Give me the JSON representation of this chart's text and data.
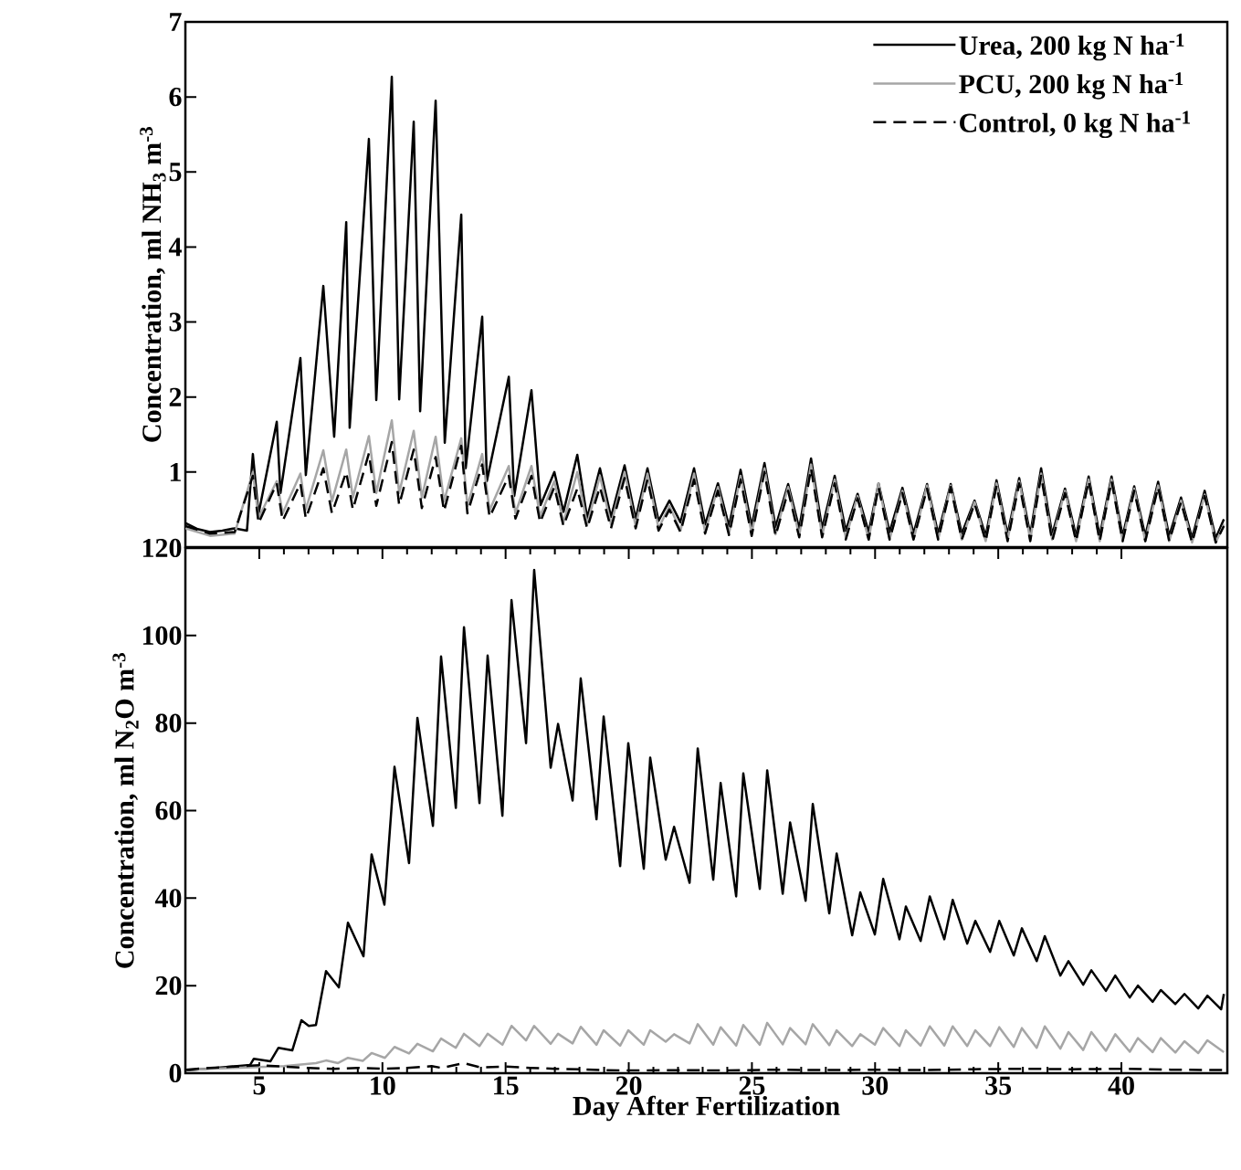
{
  "chart_data": [
    {
      "type": "line",
      "ylabel": "Concentration, ml NH$_{3}$ m$^{-3}$",
      "xlim": [
        2,
        44.3
      ],
      "ylim": [
        0,
        7
      ],
      "yticks": [
        1,
        2,
        3,
        4,
        5,
        6,
        7
      ],
      "tick_labels": "y",
      "legend": "top right",
      "series": [
        {
          "name": "Urea, 200 kg N ha$^{-1}$",
          "color": "#000000",
          "line_style": "solid",
          "x": [
            2.0,
            2.5,
            3.0,
            3.5,
            4.0,
            4.5,
            4.74,
            4.97,
            5.71,
            5.86,
            6.67,
            6.89,
            7.6,
            8.04,
            8.53,
            8.67,
            9.45,
            9.75,
            10.38,
            10.68,
            11.27,
            11.53,
            12.16,
            12.53,
            13.2,
            13.38,
            14.05,
            14.24,
            15.13,
            15.35,
            16.05,
            16.42,
            16.98,
            17.35,
            17.91,
            18.31,
            18.83,
            19.28,
            19.83,
            20.28,
            20.76,
            21.21,
            21.65,
            22.1,
            22.65,
            23.1,
            23.62,
            24.07,
            24.54,
            24.99,
            25.51,
            25.96,
            26.47,
            26.92,
            27.4,
            27.85,
            28.36,
            28.81,
            29.29,
            29.74,
            30.14,
            30.59,
            31.11,
            31.56,
            32.11,
            32.56,
            33.07,
            33.52,
            34.04,
            34.49,
            34.93,
            35.38,
            35.85,
            36.3,
            36.74,
            37.19,
            37.71,
            38.16,
            38.67,
            39.12,
            39.6,
            40.05,
            40.52,
            40.97,
            41.49,
            41.94,
            42.42,
            42.87,
            43.38,
            43.83,
            44.16
          ],
          "values": [
            0.32,
            0.24,
            0.2,
            0.22,
            0.25,
            0.22,
            1.24,
            0.44,
            1.67,
            0.72,
            2.52,
            0.96,
            3.48,
            1.47,
            4.33,
            1.59,
            5.44,
            1.96,
            6.27,
            1.97,
            5.67,
            1.81,
            5.95,
            1.39,
            4.43,
            1.05,
            3.07,
            0.88,
            2.27,
            0.68,
            2.09,
            0.56,
            1.0,
            0.47,
            1.23,
            0.39,
            1.05,
            0.4,
            1.09,
            0.38,
            1.05,
            0.35,
            0.62,
            0.33,
            1.05,
            0.3,
            0.85,
            0.28,
            1.03,
            0.28,
            1.12,
            0.27,
            0.84,
            0.25,
            1.18,
            0.25,
            0.95,
            0.22,
            0.71,
            0.2,
            0.85,
            0.2,
            0.79,
            0.18,
            0.84,
            0.18,
            0.84,
            0.18,
            0.62,
            0.15,
            0.89,
            0.17,
            0.92,
            0.17,
            1.05,
            0.17,
            0.78,
            0.15,
            0.94,
            0.15,
            0.94,
            0.15,
            0.81,
            0.15,
            0.87,
            0.15,
            0.66,
            0.12,
            0.75,
            0.12,
            0.37
          ]
        },
        {
          "name": "PCU, 200 kg N ha$^{-1}$",
          "color": "#a6a6a6",
          "line_style": "solid",
          "x": [
            2.0,
            3.0,
            4.0,
            4.74,
            4.97,
            5.71,
            5.95,
            6.67,
            6.89,
            7.6,
            7.95,
            8.53,
            8.8,
            9.45,
            9.75,
            10.38,
            10.68,
            11.27,
            11.6,
            12.16,
            12.5,
            13.2,
            13.45,
            14.05,
            14.35,
            15.13,
            15.4,
            16.05,
            16.4,
            16.98,
            17.35,
            17.91,
            18.31,
            18.83,
            19.28,
            19.83,
            20.28,
            20.76,
            21.21,
            21.65,
            22.1,
            22.65,
            23.1,
            23.62,
            24.07,
            24.54,
            24.99,
            25.51,
            25.96,
            26.47,
            26.92,
            27.4,
            27.85,
            28.36,
            28.81,
            29.29,
            29.74,
            30.14,
            30.59,
            31.11,
            31.56,
            32.11,
            32.56,
            33.07,
            33.52,
            34.04,
            34.49,
            34.93,
            35.38,
            35.85,
            36.3,
            36.74,
            37.19,
            37.71,
            38.16,
            38.67,
            39.12,
            39.6,
            40.05,
            40.52,
            40.97,
            41.49,
            41.94,
            42.42,
            42.87,
            43.38,
            43.83,
            44.16
          ],
          "values": [
            0.25,
            0.15,
            0.18,
            1.0,
            0.39,
            0.88,
            0.45,
            0.98,
            0.5,
            1.29,
            0.61,
            1.3,
            0.66,
            1.48,
            0.72,
            1.69,
            0.72,
            1.55,
            0.66,
            1.47,
            0.61,
            1.45,
            0.55,
            1.24,
            0.49,
            1.08,
            0.45,
            1.08,
            0.41,
            0.88,
            0.33,
            1.0,
            0.3,
            0.95,
            0.3,
            1.0,
            0.28,
            0.98,
            0.25,
            0.55,
            0.22,
            0.98,
            0.2,
            0.8,
            0.18,
            0.95,
            0.18,
            1.05,
            0.17,
            0.8,
            0.15,
            1.1,
            0.15,
            0.9,
            0.12,
            0.68,
            0.1,
            0.85,
            0.1,
            0.75,
            0.1,
            0.82,
            0.1,
            0.82,
            0.1,
            0.6,
            0.08,
            0.85,
            0.1,
            0.88,
            0.1,
            0.98,
            0.1,
            0.75,
            0.08,
            0.9,
            0.08,
            0.9,
            0.08,
            0.78,
            0.08,
            0.82,
            0.08,
            0.62,
            0.06,
            0.7,
            0.06,
            0.3
          ]
        },
        {
          "name": "Control, 0 kg N ha$^{-1}$",
          "color": "#000000",
          "line_style": "dashed",
          "x": [
            2.0,
            3.0,
            4.0,
            4.74,
            4.97,
            5.71,
            5.95,
            6.67,
            6.89,
            7.6,
            7.95,
            8.53,
            8.8,
            9.45,
            9.75,
            10.38,
            10.68,
            11.27,
            11.6,
            12.16,
            12.5,
            13.2,
            13.45,
            14.05,
            14.35,
            15.13,
            15.4,
            16.05,
            16.4,
            16.98,
            17.35,
            17.91,
            18.31,
            18.83,
            19.28,
            19.83,
            20.28,
            20.76,
            21.21,
            21.65,
            22.1,
            22.65,
            23.1,
            23.62,
            24.07,
            24.54,
            24.99,
            25.51,
            25.96,
            26.47,
            26.92,
            27.4,
            27.85,
            28.36,
            28.81,
            29.29,
            29.74,
            30.14,
            30.59,
            31.11,
            31.56,
            32.11,
            32.56,
            33.07,
            33.52,
            34.04,
            34.49,
            34.93,
            35.38,
            35.85,
            36.3,
            36.74,
            37.19,
            37.71,
            38.16,
            38.67,
            39.12,
            39.6,
            40.05,
            40.52,
            40.97,
            41.49,
            41.94,
            42.42,
            42.87,
            43.38,
            43.83,
            44.16
          ],
          "values": [
            0.28,
            0.18,
            0.2,
            0.95,
            0.32,
            0.85,
            0.35,
            0.85,
            0.38,
            1.05,
            0.45,
            1.0,
            0.5,
            1.25,
            0.55,
            1.4,
            0.56,
            1.3,
            0.52,
            1.2,
            0.48,
            1.35,
            0.45,
            1.1,
            0.4,
            0.95,
            0.38,
            0.95,
            0.33,
            0.8,
            0.28,
            0.78,
            0.25,
            0.8,
            0.25,
            0.92,
            0.25,
            0.9,
            0.22,
            0.5,
            0.2,
            0.9,
            0.18,
            0.75,
            0.16,
            0.9,
            0.15,
            1.0,
            0.15,
            0.75,
            0.13,
            1.05,
            0.13,
            0.85,
            0.1,
            0.65,
            0.1,
            0.8,
            0.1,
            0.72,
            0.1,
            0.78,
            0.1,
            0.8,
            0.1,
            0.58,
            0.08,
            0.82,
            0.08,
            0.85,
            0.08,
            0.95,
            0.08,
            0.72,
            0.08,
            0.88,
            0.08,
            0.88,
            0.08,
            0.75,
            0.08,
            0.8,
            0.08,
            0.6,
            0.06,
            0.68,
            0.06,
            0.28
          ]
        }
      ]
    },
    {
      "type": "line",
      "xlabel": "Day After Fertilization",
      "ylabel": "Concentration, ml N$_{2}$O m$^{-3}$",
      "xlim": [
        2,
        44.3
      ],
      "ylim": [
        0,
        120
      ],
      "xticks": [
        5,
        10,
        15,
        20,
        25,
        30,
        35,
        40
      ],
      "yticks": [
        0,
        20,
        40,
        60,
        80,
        100,
        120
      ],
      "series": [
        {
          "color": "#000000",
          "line_style": "solid",
          "x": [
            2.04,
            4.63,
            4.78,
            5.45,
            5.78,
            6.34,
            6.71,
            7.01,
            7.3,
            7.71,
            8.23,
            8.6,
            9.23,
            9.56,
            10.08,
            10.49,
            11.08,
            11.42,
            12.05,
            12.38,
            12.98,
            13.31,
            13.94,
            14.27,
            14.87,
            15.24,
            15.83,
            16.16,
            16.83,
            17.13,
            17.72,
            18.05,
            18.69,
            18.98,
            19.65,
            19.98,
            20.61,
            20.87,
            21.5,
            21.84,
            22.47,
            22.8,
            23.43,
            23.73,
            24.36,
            24.65,
            25.32,
            25.62,
            26.25,
            26.55,
            27.18,
            27.47,
            28.14,
            28.44,
            29.07,
            29.4,
            29.99,
            30.33,
            30.99,
            31.25,
            31.85,
            32.22,
            32.81,
            33.15,
            33.74,
            34.07,
            34.67,
            35.04,
            35.63,
            35.96,
            36.56,
            36.89,
            37.52,
            37.85,
            38.45,
            38.78,
            39.37,
            39.75,
            40.34,
            40.67,
            41.27,
            41.6,
            42.19,
            42.56,
            43.12,
            43.49,
            44.05,
            44.16
          ],
          "values": [
            0.6,
            1.9,
            3.3,
            2.7,
            5.8,
            5.2,
            12.1,
            10.8,
            11,
            23.3,
            19.6,
            34.4,
            26.7,
            50,
            38.5,
            70,
            48,
            81.2,
            56.5,
            95.2,
            60.6,
            101.9,
            61.7,
            95.4,
            58.8,
            108.1,
            75.4,
            115,
            69.8,
            79.8,
            62.3,
            90.2,
            58,
            81.5,
            47.3,
            75.4,
            46.7,
            72.1,
            48.8,
            56.3,
            43.5,
            74.2,
            44.2,
            66.3,
            40.4,
            68.5,
            42.1,
            69.2,
            41,
            57.3,
            39.4,
            61.5,
            36.5,
            50.2,
            31.5,
            41.3,
            31.7,
            44.4,
            30.6,
            38.1,
            30.2,
            40.4,
            30.6,
            39.6,
            29.6,
            34.8,
            27.7,
            34.8,
            26.9,
            33.1,
            25.6,
            31.3,
            22.3,
            25.6,
            20.2,
            23.5,
            18.8,
            22.3,
            17.3,
            20,
            16.3,
            19,
            15.8,
            18.1,
            14.8,
            17.7,
            14.6,
            18.1
          ]
        },
        {
          "color": "#a6a6a6",
          "line_style": "solid",
          "x": [
            2.04,
            4.0,
            6.0,
            7.3,
            7.71,
            8.2,
            8.6,
            9.2,
            9.56,
            10.1,
            10.49,
            11.08,
            11.42,
            12.05,
            12.38,
            12.98,
            13.31,
            13.94,
            14.27,
            14.87,
            15.24,
            15.83,
            16.16,
            16.83,
            17.13,
            17.72,
            18.05,
            18.69,
            18.98,
            19.65,
            19.98,
            20.61,
            20.87,
            21.5,
            21.84,
            22.47,
            22.8,
            23.43,
            23.73,
            24.36,
            24.65,
            25.32,
            25.62,
            26.25,
            26.55,
            27.18,
            27.47,
            28.14,
            28.44,
            29.07,
            29.4,
            29.99,
            30.33,
            30.99,
            31.25,
            31.85,
            32.22,
            32.81,
            33.15,
            33.74,
            34.07,
            34.67,
            35.04,
            35.63,
            35.96,
            36.56,
            36.89,
            37.52,
            37.85,
            38.45,
            38.78,
            39.37,
            39.75,
            40.34,
            40.67,
            41.27,
            41.6,
            42.19,
            42.56,
            43.12,
            43.49,
            44.16
          ],
          "values": [
            0.8,
            1.2,
            1.6,
            2.3,
            2.9,
            2.3,
            3.5,
            2.8,
            4.6,
            3.5,
            6,
            4.5,
            6.7,
            5,
            7.9,
            5.8,
            9,
            6.2,
            9,
            6.5,
            10.8,
            7.5,
            10.8,
            6.7,
            9,
            6.8,
            10.6,
            6.5,
            9.8,
            6.3,
            9.8,
            6.5,
            9.8,
            7.2,
            8.9,
            6.8,
            11.2,
            6.5,
            10.5,
            6.3,
            11,
            6.5,
            11.5,
            6.6,
            10.3,
            6.6,
            11.2,
            6.4,
            9.8,
            6.2,
            8.9,
            6.5,
            10.3,
            6.2,
            9.8,
            6.3,
            10.7,
            6.3,
            10.7,
            6.2,
            9.8,
            6.2,
            10.5,
            6,
            10.3,
            5.8,
            10.7,
            5.6,
            9.4,
            5.3,
            9.4,
            5.1,
            8.9,
            4.9,
            8,
            4.8,
            8,
            4.7,
            7.3,
            4.6,
            7.5,
            4.8
          ]
        },
        {
          "color": "#000000",
          "line_style": "dashed",
          "x": [
            2.04,
            3,
            4,
            5,
            6,
            7,
            8,
            9,
            10,
            11,
            12,
            12.4,
            13.3,
            14,
            15,
            16,
            17,
            18,
            19,
            20,
            22,
            24,
            26,
            28,
            30,
            32,
            34,
            36,
            38,
            40,
            42,
            44.16
          ],
          "values": [
            0.8,
            1.2,
            1.5,
            1.8,
            1.5,
            1.2,
            1.0,
            1.2,
            1.0,
            1.2,
            1.6,
            1.2,
            2.3,
            1.3,
            1.5,
            1.2,
            1.0,
            0.9,
            0.7,
            0.6,
            0.7,
            0.6,
            0.8,
            0.7,
            0.8,
            0.7,
            0.9,
            1.0,
            0.9,
            1.0,
            0.8,
            0.7
          ]
        }
      ]
    }
  ]
}
